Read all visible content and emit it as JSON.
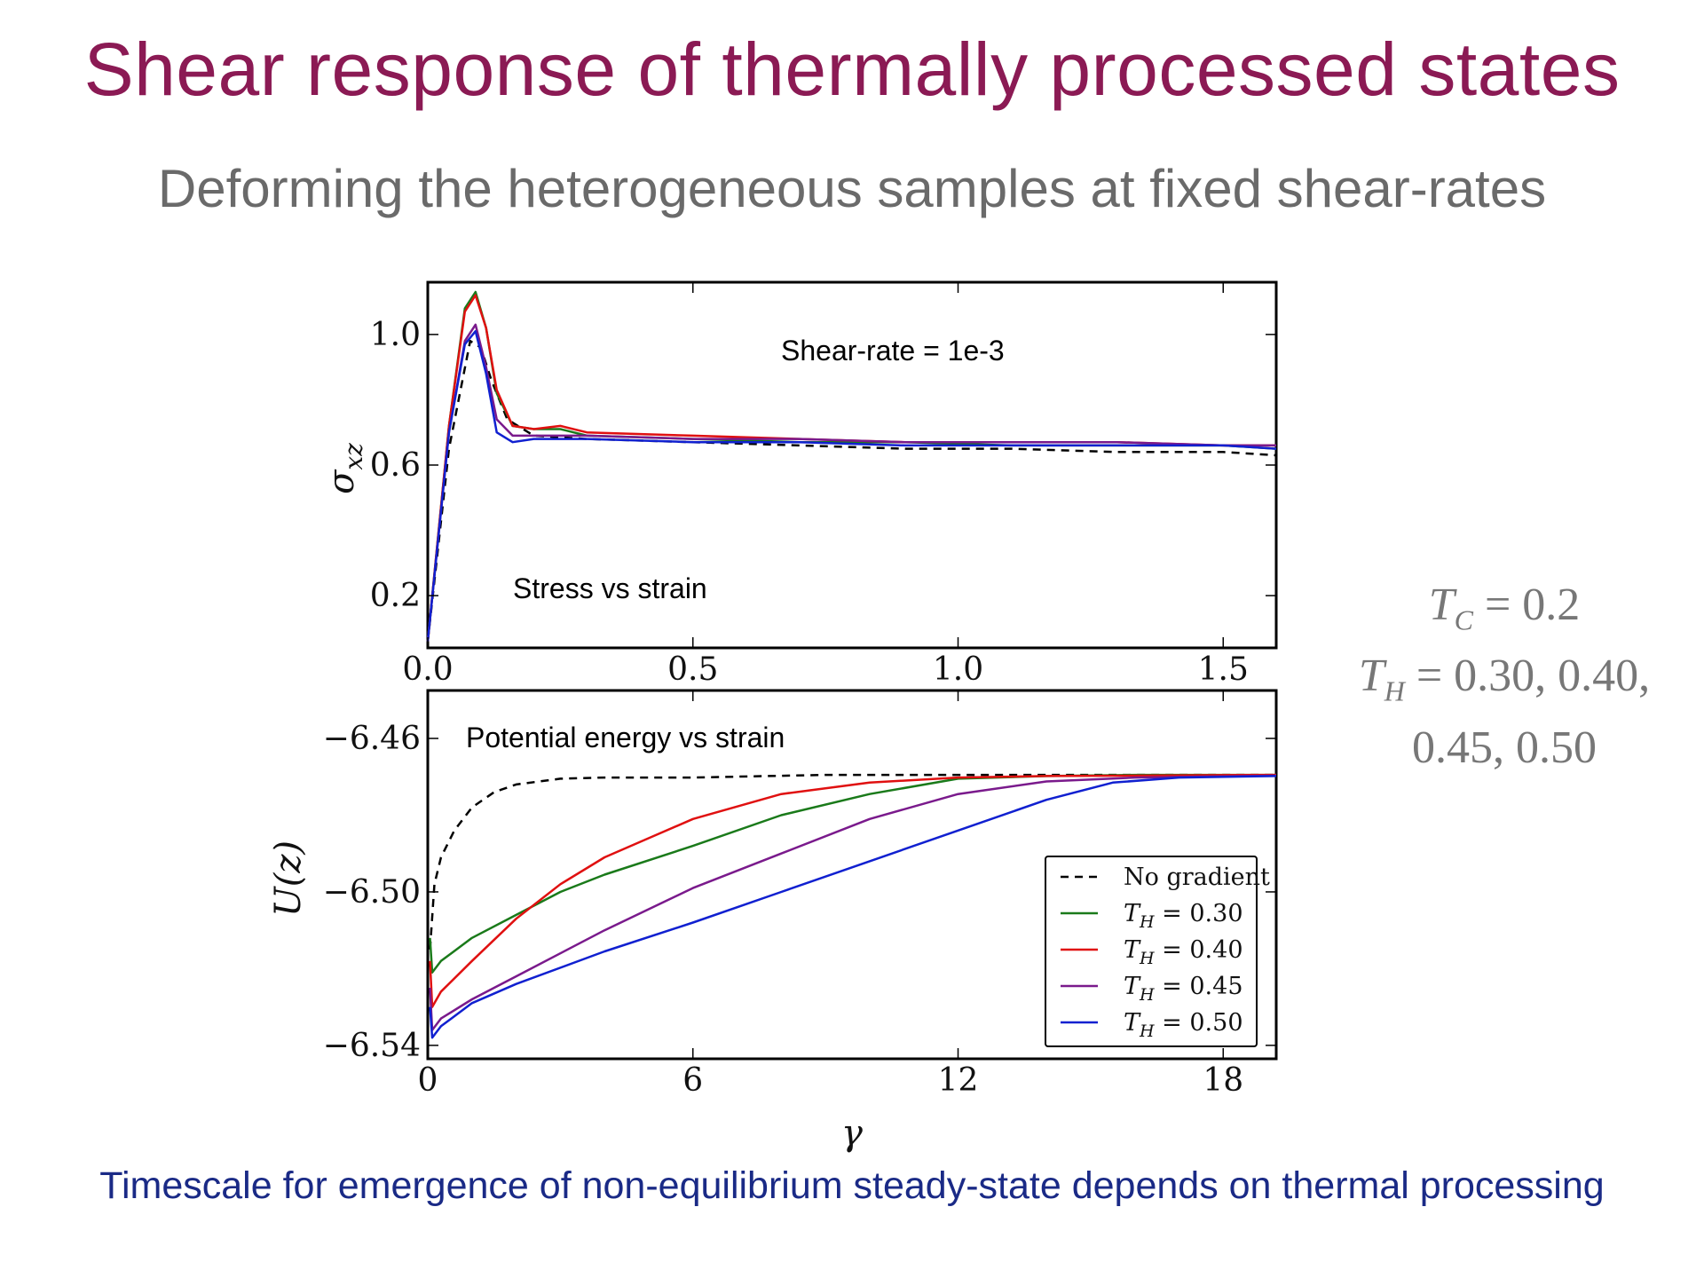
{
  "slide": {
    "title": "Shear response of  thermally processed states",
    "subtitle": "Deforming the heterogeneous samples at fixed shear-rates",
    "footer": "Timescale for emergence of non-equilibrium steady-state depends on thermal processing"
  },
  "parameters": {
    "tc_symbol": "T",
    "tc_sub": "C",
    "tc_value": " = 0.2",
    "th_symbol": "T",
    "th_sub": "H",
    "th_value": " = 0.30, 0.40,",
    "th_value_cont": "0.45, 0.50"
  },
  "colors": {
    "title": "#8b1a54",
    "footer": "#1a2a86",
    "no_gradient": "#000000",
    "th_030": "#1a7a1a",
    "th_040": "#e01010",
    "th_045": "#7a1a8c",
    "th_050": "#1020d0"
  },
  "chart_data": [
    {
      "type": "line",
      "annotation": "Shear-rate = 1e-3",
      "caption": "Stress vs strain",
      "xlabel": "",
      "ylabel": "σ",
      "ylabel_sub": "xz",
      "xlim": [
        0,
        1.6
      ],
      "ylim": [
        0.04,
        1.16
      ],
      "xticks": [
        "0.0",
        "0.5",
        "1.0",
        "1.5"
      ],
      "xtick_values": [
        0,
        0.5,
        1.0,
        1.5
      ],
      "yticks": [
        "1.0",
        "0.6",
        "0.2"
      ],
      "ytick_values": [
        1.0,
        0.6,
        0.2
      ],
      "series": [
        {
          "key": "no_gradient",
          "dashed": true,
          "x": [
            0,
            0.04,
            0.08,
            0.1,
            0.12,
            0.15,
            0.2,
            0.3,
            0.5,
            0.7,
            0.9,
            1.1,
            1.3,
            1.5,
            1.6
          ],
          "y": [
            0.06,
            0.65,
            0.98,
            0.96,
            0.86,
            0.74,
            0.69,
            0.68,
            0.67,
            0.66,
            0.65,
            0.65,
            0.64,
            0.64,
            0.63
          ]
        },
        {
          "key": "th_030",
          "dashed": false,
          "x": [
            0,
            0.04,
            0.07,
            0.09,
            0.11,
            0.13,
            0.16,
            0.2,
            0.25,
            0.3,
            0.5,
            0.7,
            0.9,
            1.1,
            1.3,
            1.5,
            1.6
          ],
          "y": [
            0.06,
            0.72,
            1.08,
            1.13,
            1.02,
            0.82,
            0.72,
            0.71,
            0.71,
            0.69,
            0.68,
            0.67,
            0.67,
            0.66,
            0.66,
            0.66,
            0.65
          ]
        },
        {
          "key": "th_040",
          "dashed": false,
          "x": [
            0,
            0.04,
            0.07,
            0.09,
            0.11,
            0.13,
            0.16,
            0.2,
            0.25,
            0.3,
            0.5,
            0.7,
            0.9,
            1.1,
            1.3,
            1.5,
            1.6
          ],
          "y": [
            0.06,
            0.72,
            1.07,
            1.12,
            1.02,
            0.83,
            0.72,
            0.71,
            0.72,
            0.7,
            0.69,
            0.68,
            0.67,
            0.67,
            0.67,
            0.66,
            0.66
          ]
        },
        {
          "key": "th_045",
          "dashed": false,
          "x": [
            0,
            0.04,
            0.07,
            0.09,
            0.11,
            0.13,
            0.16,
            0.2,
            0.3,
            0.5,
            0.7,
            0.9,
            1.1,
            1.3,
            1.5,
            1.6
          ],
          "y": [
            0.06,
            0.7,
            0.98,
            1.03,
            0.9,
            0.74,
            0.69,
            0.69,
            0.69,
            0.68,
            0.68,
            0.67,
            0.67,
            0.67,
            0.66,
            0.66
          ]
        },
        {
          "key": "th_050",
          "dashed": false,
          "x": [
            0,
            0.04,
            0.07,
            0.09,
            0.11,
            0.13,
            0.16,
            0.2,
            0.3,
            0.5,
            0.7,
            0.9,
            1.1,
            1.3,
            1.5,
            1.6
          ],
          "y": [
            0.06,
            0.7,
            0.97,
            1.01,
            0.88,
            0.7,
            0.67,
            0.68,
            0.68,
            0.67,
            0.67,
            0.66,
            0.66,
            0.66,
            0.66,
            0.65
          ]
        }
      ]
    },
    {
      "type": "line",
      "caption": "Potential energy vs strain",
      "xlabel": "γ",
      "ylabel": "U(z)",
      "xlim": [
        0,
        19.2
      ],
      "ylim": [
        -6.5435,
        -6.4475
      ],
      "xticks": [
        "0",
        "6",
        "12",
        "18"
      ],
      "xtick_values": [
        0,
        6,
        12,
        18
      ],
      "yticks": [
        "−6.46",
        "−6.50",
        "−6.54"
      ],
      "ytick_values": [
        -6.46,
        -6.5,
        -6.54
      ],
      "legend": {
        "placement": "lower-right",
        "entries": [
          {
            "key": "no_gradient",
            "label": "No gradient"
          },
          {
            "key": "th_030",
            "label_symbol": "T",
            "label_sub": "H",
            "label_value": " = 0.30"
          },
          {
            "key": "th_040",
            "label_symbol": "T",
            "label_sub": "H",
            "label_value": " = 0.40"
          },
          {
            "key": "th_045",
            "label_symbol": "T",
            "label_sub": "H",
            "label_value": " = 0.45"
          },
          {
            "key": "th_050",
            "label_symbol": "T",
            "label_sub": "H",
            "label_value": " = 0.50"
          }
        ]
      },
      "series": [
        {
          "key": "no_gradient",
          "dashed": true,
          "x": [
            0.05,
            0.15,
            0.3,
            0.6,
            1.0,
            1.5,
            2.0,
            3.0,
            4.0,
            6.0,
            9.0,
            12.0,
            15.0,
            19.2
          ],
          "y": [
            -6.515,
            -6.498,
            -6.491,
            -6.484,
            -6.478,
            -6.474,
            -6.472,
            -6.4705,
            -6.4702,
            -6.4702,
            -6.4695,
            -6.4695,
            -6.4695,
            -6.4695
          ]
        },
        {
          "key": "th_030",
          "dashed": false,
          "x": [
            0.05,
            0.1,
            0.3,
            1.0,
            2.0,
            3.0,
            4.0,
            6.0,
            8.0,
            10.0,
            12.0,
            14.0,
            16.0,
            19.2
          ],
          "y": [
            -6.512,
            -6.521,
            -6.518,
            -6.512,
            -6.506,
            -6.5,
            -6.4955,
            -6.488,
            -6.48,
            -6.4745,
            -6.4705,
            -6.4698,
            -6.4695,
            -6.4695
          ]
        },
        {
          "key": "th_040",
          "dashed": false,
          "x": [
            0.05,
            0.1,
            0.3,
            1.0,
            2.0,
            3.0,
            4.0,
            5.0,
            6.0,
            8.0,
            10.0,
            12.0,
            14.0,
            19.2
          ],
          "y": [
            -6.518,
            -6.53,
            -6.526,
            -6.518,
            -6.507,
            -6.498,
            -6.491,
            -6.486,
            -6.481,
            -6.4745,
            -6.4715,
            -6.4702,
            -6.4698,
            -6.4695
          ]
        },
        {
          "key": "th_045",
          "dashed": false,
          "x": [
            0.05,
            0.1,
            0.3,
            1.0,
            2.0,
            4.0,
            6.0,
            8.0,
            10.0,
            12.0,
            14.0,
            16.0,
            19.2
          ],
          "y": [
            -6.525,
            -6.536,
            -6.533,
            -6.528,
            -6.522,
            -6.51,
            -6.499,
            -6.49,
            -6.481,
            -6.4745,
            -6.4712,
            -6.4702,
            -6.4697
          ]
        },
        {
          "key": "th_050",
          "dashed": false,
          "x": [
            0.05,
            0.1,
            0.3,
            1.0,
            2.0,
            4.0,
            6.0,
            8.0,
            10.0,
            12.0,
            14.0,
            15.5,
            17.0,
            19.2
          ],
          "y": [
            -6.53,
            -6.538,
            -6.535,
            -6.529,
            -6.524,
            -6.5155,
            -6.508,
            -6.5,
            -6.492,
            -6.484,
            -6.476,
            -6.4715,
            -6.4702,
            -6.4698
          ]
        }
      ]
    }
  ]
}
